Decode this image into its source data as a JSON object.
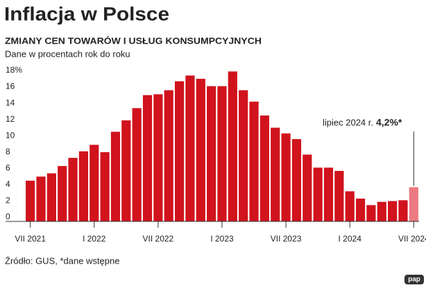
{
  "header": {
    "title": "Inflacja w Polsce",
    "subtitle": "ZMIANY CEN TOWARÓW I USŁUG KONSUMPCYJNYCH",
    "note": "Dane w procentach rok do roku"
  },
  "chart_data": {
    "type": "bar",
    "categories": [
      "VII 2021",
      null,
      null,
      null,
      null,
      null,
      "I 2022",
      null,
      null,
      null,
      null,
      null,
      "VII 2022",
      null,
      null,
      null,
      null,
      null,
      "I 2023",
      null,
      null,
      null,
      null,
      null,
      "VII 2023",
      null,
      null,
      null,
      null,
      null,
      "I 2024",
      null,
      null,
      null,
      null,
      null,
      "VII 2024"
    ],
    "values": [
      5.0,
      5.5,
      5.9,
      6.8,
      7.8,
      8.6,
      9.4,
      8.5,
      11.0,
      12.4,
      13.9,
      15.5,
      15.6,
      16.1,
      17.2,
      17.9,
      17.5,
      16.6,
      16.6,
      18.4,
      16.1,
      14.7,
      13.0,
      11.5,
      10.8,
      10.1,
      8.2,
      6.6,
      6.6,
      6.2,
      3.7,
      2.8,
      2.0,
      2.4,
      2.5,
      2.6,
      4.2
    ],
    "colors": [
      "#d0131d",
      "#d0131d",
      "#d0131d",
      "#d0131d",
      "#d0131d",
      "#d0131d",
      "#d0131d",
      "#d0131d",
      "#d0131d",
      "#d0131d",
      "#d0131d",
      "#d0131d",
      "#d0131d",
      "#d0131d",
      "#d0131d",
      "#d0131d",
      "#d0131d",
      "#d0131d",
      "#d0131d",
      "#d0131d",
      "#d0131d",
      "#d0131d",
      "#d0131d",
      "#d0131d",
      "#d0131d",
      "#d0131d",
      "#d0131d",
      "#d0131d",
      "#d0131d",
      "#d0131d",
      "#d0131d",
      "#d0131d",
      "#d0131d",
      "#d0131d",
      "#d0131d",
      "#d0131d",
      "#ec7a82"
    ],
    "ylim": [
      0,
      18
    ],
    "yticks": [
      0,
      2,
      4,
      6,
      8,
      10,
      12,
      14,
      16,
      {
        "value": 18,
        "label": "18%"
      }
    ],
    "grid": false,
    "annotation": {
      "text": "lipiec 2024 r.",
      "value_label": "4,2%*"
    }
  },
  "footer": {
    "source": "Źródło: GUS, *dane wstępne",
    "logo": "pap"
  }
}
